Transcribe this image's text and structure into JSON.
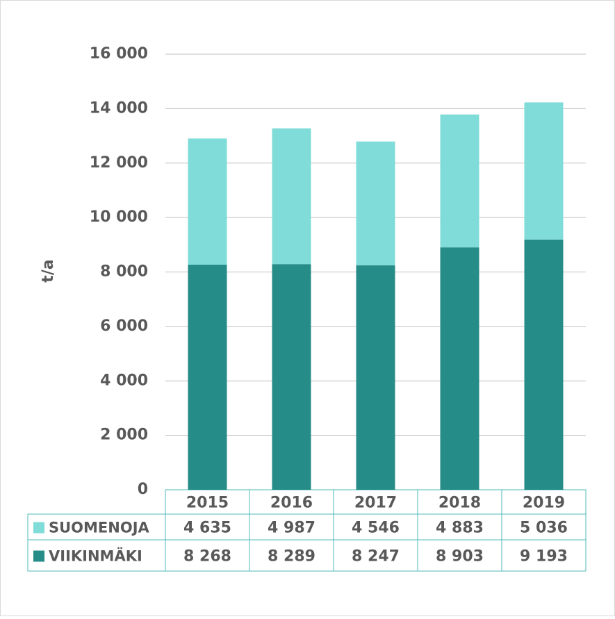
{
  "chart_data": {
    "type": "stacked_bar",
    "y_label": "t/a",
    "categories": [
      "2015",
      "2016",
      "2017",
      "2018",
      "2019"
    ],
    "series": [
      {
        "name": "SUOMENOJA",
        "color": "#80dcd8",
        "values": [
          4635,
          4987,
          4546,
          4883,
          5036
        ],
        "value_labels": [
          "4 635",
          "4 987",
          "4 546",
          "4 883",
          "5 036"
        ]
      },
      {
        "name": "VIIKINMÄKI",
        "color": "#268c87",
        "values": [
          8268,
          8289,
          8247,
          8903,
          9193
        ],
        "value_labels": [
          "8 268",
          "8 289",
          "8 247",
          "8 903",
          "9 193"
        ]
      }
    ],
    "ylim": [
      0,
      16000
    ],
    "yticks": [
      0,
      {
        "value": 2000,
        "label": "2 000"
      },
      {
        "value": 4000,
        "label": "4 000"
      },
      {
        "value": 6000,
        "label": "6 000"
      },
      {
        "value": 8000,
        "label": "8 000"
      },
      {
        "value": 10000,
        "label": "10 000"
      },
      {
        "value": 12000,
        "label": "12 000"
      },
      {
        "value": 14000,
        "label": "14 000"
      },
      {
        "value": 16000,
        "label": "16 000"
      }
    ],
    "grid": true
  }
}
